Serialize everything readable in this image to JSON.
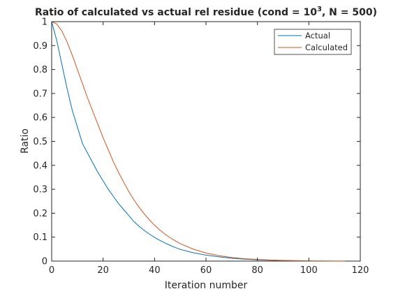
{
  "chart_data": {
    "type": "line",
    "title": {
      "prefix": "Ratio of calculated vs actual rel residue (cond = 10",
      "superscript": "3",
      "suffix": ", N = 500)"
    },
    "xlabel": "Iteration number",
    "ylabel": "Ratio",
    "xlim": [
      0,
      120
    ],
    "ylim": [
      0,
      1
    ],
    "xticks": [
      0,
      20,
      40,
      60,
      80,
      100,
      120
    ],
    "yticks": [
      0,
      0.1,
      0.2,
      0.3,
      0.4,
      0.5,
      0.6,
      0.7,
      0.8,
      0.9,
      1
    ],
    "ytick_labels": [
      "0",
      "0.1",
      "0.2",
      "0.3",
      "0.4",
      "0.5",
      "0.6",
      "0.7",
      "0.8",
      "0.9",
      "1"
    ],
    "grid": false,
    "legend_position": "top-right",
    "series": [
      {
        "name": "Actual",
        "color": "#0072BD",
        "x": [
          0,
          2,
          4,
          6,
          8,
          10,
          12,
          14,
          16,
          18,
          20,
          22,
          24,
          26,
          28,
          30,
          32,
          34,
          36,
          38,
          40,
          42,
          44,
          46,
          48,
          50,
          55,
          60,
          65,
          70,
          75,
          80,
          85,
          90,
          95,
          100,
          103
        ],
        "y": [
          1.0,
          0.92,
          0.82,
          0.72,
          0.63,
          0.56,
          0.49,
          0.45,
          0.41,
          0.37,
          0.335,
          0.3,
          0.27,
          0.24,
          0.215,
          0.19,
          0.165,
          0.145,
          0.128,
          0.113,
          0.099,
          0.087,
          0.076,
          0.066,
          0.057,
          0.049,
          0.035,
          0.025,
          0.018,
          0.012,
          0.008,
          0.0055,
          0.0035,
          0.002,
          0.001,
          0.0005,
          0.0003
        ]
      },
      {
        "name": "Calculated",
        "color": "#D95319",
        "x": [
          0,
          2,
          4,
          6,
          8,
          10,
          12,
          14,
          16,
          18,
          20,
          22,
          24,
          26,
          28,
          30,
          32,
          34,
          36,
          38,
          40,
          42,
          44,
          46,
          48,
          50,
          55,
          60,
          65,
          70,
          75,
          80,
          85,
          90,
          95,
          100,
          105,
          110,
          114
        ],
        "y": [
          1.0,
          0.99,
          0.96,
          0.915,
          0.86,
          0.8,
          0.74,
          0.68,
          0.625,
          0.57,
          0.515,
          0.465,
          0.415,
          0.37,
          0.33,
          0.29,
          0.255,
          0.225,
          0.197,
          0.172,
          0.15,
          0.13,
          0.113,
          0.098,
          0.085,
          0.073,
          0.05,
          0.034,
          0.023,
          0.015,
          0.01,
          0.007,
          0.0045,
          0.003,
          0.002,
          0.0012,
          0.0007,
          0.0004,
          0.0002
        ]
      }
    ]
  }
}
